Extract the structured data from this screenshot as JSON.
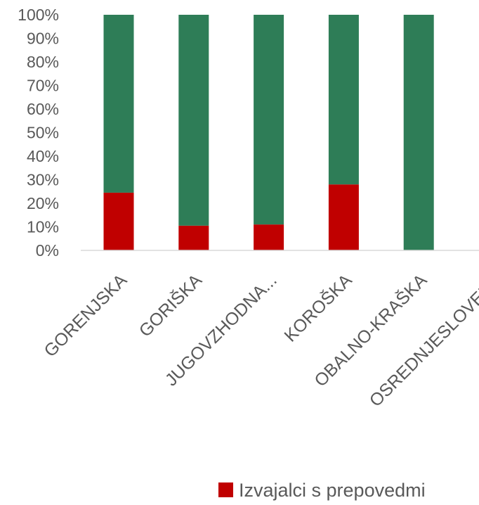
{
  "chart_data": {
    "type": "bar",
    "stacked": true,
    "percent": true,
    "categories": [
      "GORENJSKA",
      "GORIŠKA",
      "JUGOVZHODNA...",
      "KOROŠKA",
      "OBALNO-KRAŠKA",
      "OSREDNJESLOVENS"
    ],
    "series": [
      {
        "name": "Izvajalci s prepovedmi",
        "color": "#c00000",
        "values": [
          24.5,
          10.5,
          11,
          28,
          0,
          null
        ]
      },
      {
        "name": "",
        "color": "#2e7d57",
        "values": [
          75.5,
          89.5,
          89,
          72,
          100,
          null
        ]
      }
    ],
    "y_ticks": [
      "0%",
      "10%",
      "20%",
      "30%",
      "40%",
      "50%",
      "60%",
      "70%",
      "80%",
      "90%",
      "100%"
    ],
    "ylim": [
      0,
      100
    ],
    "grid": false,
    "legend": "bottom-right",
    "legend_entries": [
      "Izvajalci s prepovedmi"
    ]
  }
}
